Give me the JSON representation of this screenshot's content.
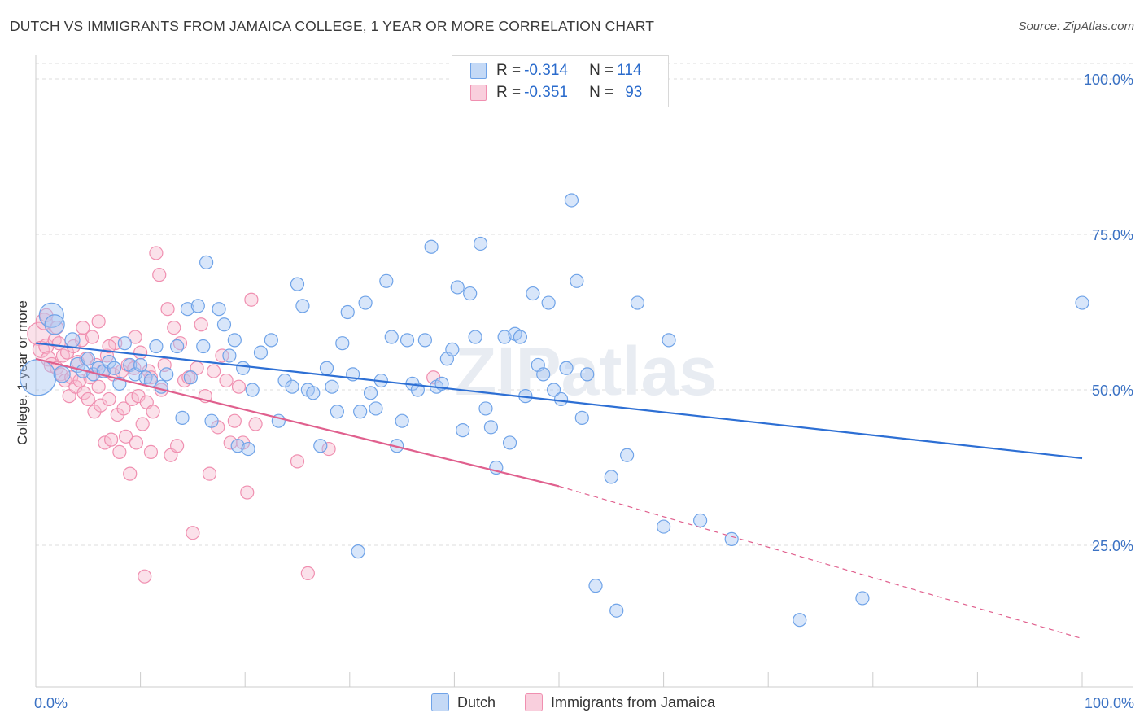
{
  "title": "DUTCH VS IMMIGRANTS FROM JAMAICA COLLEGE, 1 YEAR OR MORE CORRELATION CHART",
  "source": "Source: ZipAtlas.com",
  "watermark": "ZIPatlas",
  "colors": {
    "dutch": "#6fa3e8",
    "dutch_fill": "#a9c8f3",
    "dutch_line": "#2d6fd4",
    "jamaica": "#f08fb0",
    "jamaica_fill": "#f7bcd0",
    "jamaica_line": "#e0608e",
    "axis_text": "#3b72c4",
    "grid": "#dddddd"
  },
  "legend": {
    "rows": [
      {
        "r_label": "R = ",
        "r_value": "-0.314",
        "n_label": "N = ",
        "n_value": "114"
      },
      {
        "r_label": "R = ",
        "r_value": "-0.351",
        "n_label": "N = ",
        "n_value": "93"
      }
    ]
  },
  "chart_data": {
    "type": "scatter",
    "title": "DUTCH VS IMMIGRANTS FROM JAMAICA COLLEGE, 1 YEAR OR MORE CORRELATION CHART",
    "xlabel": "",
    "ylabel": "College, 1 year or more",
    "xlim": [
      0,
      100
    ],
    "ylim": [
      0,
      105
    ],
    "x_tick_labels": [
      "0.0%",
      "100.0%"
    ],
    "y_tick_labels": [
      "25.0%",
      "50.0%",
      "75.0%",
      "100.0%"
    ],
    "y_ticks": [
      25,
      50,
      75,
      100
    ],
    "grid": true,
    "legend_position": "top-center",
    "series": [
      {
        "name": "Dutch",
        "r": -0.314,
        "n": 114,
        "trend": {
          "x": [
            0,
            100
          ],
          "y": [
            57.5,
            39.0
          ]
        },
        "points": [
          [
            0.2,
            52.0,
            22
          ],
          [
            1.5,
            62.0,
            15
          ],
          [
            1.8,
            60.5,
            12
          ],
          [
            2.5,
            52.5,
            10
          ],
          [
            3.5,
            58.0,
            9
          ],
          [
            4.0,
            54.0,
            9
          ],
          [
            4.5,
            53.0,
            8
          ],
          [
            5.0,
            55.0,
            8
          ],
          [
            5.5,
            52.5,
            8
          ],
          [
            6.0,
            53.5,
            8
          ],
          [
            6.5,
            53.0,
            8
          ],
          [
            7.0,
            54.5,
            8
          ],
          [
            7.5,
            53.5,
            8
          ],
          [
            8.0,
            51.0,
            8
          ],
          [
            8.5,
            57.5,
            8
          ],
          [
            9.0,
            54.0,
            8
          ],
          [
            9.5,
            52.5,
            8
          ],
          [
            10.0,
            54.0,
            8
          ],
          [
            10.5,
            52.0,
            8
          ],
          [
            11.0,
            51.5,
            8
          ],
          [
            11.5,
            57.0,
            8
          ],
          [
            12.0,
            50.5,
            8
          ],
          [
            12.5,
            52.5,
            8
          ],
          [
            13.5,
            57.0,
            8
          ],
          [
            14.0,
            45.5,
            8
          ],
          [
            14.5,
            63.0,
            8
          ],
          [
            14.8,
            52.0,
            8
          ],
          [
            15.5,
            63.5,
            8
          ],
          [
            16.0,
            57.0,
            8
          ],
          [
            16.3,
            70.5,
            8
          ],
          [
            16.8,
            45.0,
            8
          ],
          [
            17.5,
            63.0,
            8
          ],
          [
            18.0,
            60.5,
            8
          ],
          [
            18.5,
            55.5,
            8
          ],
          [
            19.0,
            58.0,
            8
          ],
          [
            19.3,
            41.0,
            8
          ],
          [
            19.8,
            53.5,
            8
          ],
          [
            20.3,
            40.5,
            8
          ],
          [
            20.7,
            50.0,
            8
          ],
          [
            21.5,
            56.0,
            8
          ],
          [
            22.5,
            58.0,
            8
          ],
          [
            23.2,
            45.0,
            8
          ],
          [
            23.8,
            51.5,
            8
          ],
          [
            24.5,
            50.5,
            8
          ],
          [
            25.0,
            67.0,
            8
          ],
          [
            25.5,
            63.5,
            8
          ],
          [
            26.0,
            50.0,
            8
          ],
          [
            26.5,
            49.5,
            8
          ],
          [
            27.2,
            41.0,
            8
          ],
          [
            27.8,
            53.5,
            8
          ],
          [
            28.3,
            50.5,
            8
          ],
          [
            28.8,
            46.5,
            8
          ],
          [
            29.3,
            57.5,
            8
          ],
          [
            29.8,
            62.5,
            8
          ],
          [
            30.3,
            52.5,
            8
          ],
          [
            31.0,
            46.5,
            8
          ],
          [
            31.5,
            64.0,
            8
          ],
          [
            32.0,
            49.5,
            8
          ],
          [
            32.5,
            47.0,
            8
          ],
          [
            33.0,
            51.5,
            8
          ],
          [
            33.5,
            67.5,
            8
          ],
          [
            34.0,
            58.5,
            8
          ],
          [
            34.5,
            41.0,
            8
          ],
          [
            35.0,
            45.0,
            8
          ],
          [
            35.5,
            58.0,
            8
          ],
          [
            36.0,
            51.0,
            8
          ],
          [
            36.5,
            50.0,
            8
          ],
          [
            37.2,
            58.0,
            8
          ],
          [
            37.8,
            73.0,
            8
          ],
          [
            38.3,
            50.5,
            8
          ],
          [
            38.8,
            51.0,
            8
          ],
          [
            39.3,
            55.0,
            8
          ],
          [
            39.8,
            56.5,
            8
          ],
          [
            40.3,
            66.5,
            8
          ],
          [
            40.8,
            43.5,
            8
          ],
          [
            41.5,
            65.5,
            8
          ],
          [
            42.0,
            58.5,
            8
          ],
          [
            42.5,
            73.5,
            8
          ],
          [
            43.0,
            47.0,
            8
          ],
          [
            43.5,
            44.0,
            8
          ],
          [
            44.0,
            37.5,
            8
          ],
          [
            44.8,
            58.5,
            8
          ],
          [
            45.3,
            41.5,
            8
          ],
          [
            45.8,
            59.0,
            8
          ],
          [
            46.3,
            58.5,
            8
          ],
          [
            46.8,
            49.0,
            8
          ],
          [
            47.5,
            65.5,
            8
          ],
          [
            48.0,
            54.0,
            8
          ],
          [
            48.5,
            52.5,
            8
          ],
          [
            49.0,
            64.0,
            8
          ],
          [
            49.5,
            50.0,
            8
          ],
          [
            50.2,
            48.5,
            8
          ],
          [
            50.7,
            53.5,
            8
          ],
          [
            51.2,
            80.5,
            8
          ],
          [
            51.7,
            67.5,
            8
          ],
          [
            52.2,
            45.5,
            8
          ],
          [
            52.7,
            52.5,
            8
          ],
          [
            53.5,
            18.5,
            8
          ],
          [
            55.0,
            36.0,
            8
          ],
          [
            55.5,
            14.5,
            8
          ],
          [
            56.5,
            39.5,
            8
          ],
          [
            57.5,
            64.0,
            8
          ],
          [
            60.0,
            28.0,
            8
          ],
          [
            60.5,
            58.0,
            8
          ],
          [
            63.5,
            29.0,
            8
          ],
          [
            66.5,
            26.0,
            8
          ],
          [
            73.0,
            13.0,
            8
          ],
          [
            79.0,
            16.5,
            8
          ],
          [
            100.0,
            64.0,
            8
          ],
          [
            30.8,
            24.0,
            8
          ],
          [
            15.0,
            26.0,
            0
          ]
        ]
      },
      {
        "name": "Immigrants from Jamaica",
        "r": -0.351,
        "n": 93,
        "trend_solid": {
          "x": [
            0,
            50
          ],
          "y": [
            55.0,
            34.5
          ]
        },
        "trend_dashed": {
          "x": [
            50,
            100
          ],
          "y": [
            34.5,
            10.0
          ]
        },
        "points": [
          [
            0.3,
            59.0,
            14
          ],
          [
            0.5,
            56.5,
            10
          ],
          [
            0.8,
            61.0,
            10
          ],
          [
            1.0,
            57.0,
            9
          ],
          [
            1.2,
            55.0,
            9
          ],
          [
            1.5,
            54.0,
            9
          ],
          [
            1.8,
            58.0,
            8
          ],
          [
            2.0,
            53.5,
            8
          ],
          [
            2.2,
            57.5,
            8
          ],
          [
            2.4,
            52.5,
            8
          ],
          [
            2.6,
            55.5,
            8
          ],
          [
            2.8,
            51.5,
            8
          ],
          [
            3.0,
            56.0,
            8
          ],
          [
            3.2,
            49.0,
            8
          ],
          [
            3.4,
            52.0,
            8
          ],
          [
            3.6,
            57.0,
            8
          ],
          [
            3.8,
            50.5,
            8
          ],
          [
            4.0,
            54.5,
            8
          ],
          [
            4.2,
            51.5,
            8
          ],
          [
            4.4,
            58.0,
            8
          ],
          [
            4.6,
            49.5,
            8
          ],
          [
            4.8,
            55.0,
            8
          ],
          [
            5.0,
            48.5,
            8
          ],
          [
            5.2,
            52.0,
            8
          ],
          [
            5.4,
            58.5,
            8
          ],
          [
            5.6,
            46.5,
            8
          ],
          [
            5.8,
            54.0,
            8
          ],
          [
            6.0,
            50.5,
            8
          ],
          [
            6.2,
            47.5,
            8
          ],
          [
            6.4,
            53.0,
            8
          ],
          [
            6.6,
            41.5,
            8
          ],
          [
            6.8,
            55.5,
            8
          ],
          [
            7.0,
            48.5,
            8
          ],
          [
            7.2,
            42.0,
            8
          ],
          [
            7.4,
            52.5,
            8
          ],
          [
            7.6,
            57.5,
            8
          ],
          [
            7.8,
            46.0,
            8
          ],
          [
            8.0,
            40.0,
            8
          ],
          [
            8.2,
            53.0,
            8
          ],
          [
            8.4,
            47.0,
            8
          ],
          [
            8.6,
            42.5,
            8
          ],
          [
            8.8,
            54.0,
            8
          ],
          [
            9.0,
            36.5,
            8
          ],
          [
            9.2,
            48.5,
            8
          ],
          [
            9.4,
            53.5,
            8
          ],
          [
            9.6,
            41.5,
            8
          ],
          [
            9.8,
            49.0,
            8
          ],
          [
            10.0,
            56.0,
            8
          ],
          [
            10.2,
            44.5,
            8
          ],
          [
            10.4,
            20.0,
            8
          ],
          [
            10.6,
            48.0,
            8
          ],
          [
            10.8,
            53.0,
            8
          ],
          [
            11.0,
            40.0,
            8
          ],
          [
            11.2,
            46.5,
            8
          ],
          [
            11.5,
            72.0,
            8
          ],
          [
            11.8,
            68.5,
            8
          ],
          [
            12.0,
            50.0,
            8
          ],
          [
            12.3,
            54.0,
            8
          ],
          [
            12.6,
            63.0,
            8
          ],
          [
            12.9,
            39.5,
            8
          ],
          [
            13.2,
            60.0,
            8
          ],
          [
            13.5,
            41.0,
            8
          ],
          [
            13.8,
            57.5,
            8
          ],
          [
            14.2,
            51.5,
            8
          ],
          [
            14.6,
            52.0,
            8
          ],
          [
            15.0,
            27.0,
            8
          ],
          [
            15.4,
            53.5,
            8
          ],
          [
            15.8,
            60.5,
            8
          ],
          [
            16.2,
            49.0,
            8
          ],
          [
            16.6,
            36.5,
            8
          ],
          [
            17.0,
            53.0,
            8
          ],
          [
            17.4,
            44.0,
            8
          ],
          [
            17.8,
            55.5,
            8
          ],
          [
            18.2,
            51.5,
            8
          ],
          [
            18.6,
            41.5,
            8
          ],
          [
            19.0,
            45.0,
            8
          ],
          [
            19.4,
            50.5,
            8
          ],
          [
            19.8,
            41.5,
            8
          ],
          [
            20.2,
            33.5,
            8
          ],
          [
            20.6,
            64.5,
            8
          ],
          [
            21.0,
            44.5,
            8
          ],
          [
            25.0,
            38.5,
            8
          ],
          [
            26.0,
            20.5,
            8
          ],
          [
            28.0,
            40.5,
            8
          ],
          [
            3.0,
            45.0,
            0
          ],
          [
            2.0,
            60.0,
            8
          ],
          [
            1.0,
            62.0,
            8
          ],
          [
            4.5,
            60.0,
            8
          ],
          [
            6.0,
            61.0,
            8
          ],
          [
            7.0,
            57.0,
            8
          ],
          [
            9.5,
            58.5,
            8
          ],
          [
            11.0,
            52.0,
            8
          ],
          [
            38.0,
            52.0,
            8
          ]
        ]
      }
    ]
  },
  "axis": {
    "x_left_label": "0.0%",
    "x_right_label": "100.0%",
    "y_labels": [
      "100.0%",
      "75.0%",
      "50.0%",
      "25.0%"
    ]
  },
  "bottom_legend": {
    "dutch_label": "Dutch",
    "jamaica_label": "Immigrants from Jamaica"
  }
}
